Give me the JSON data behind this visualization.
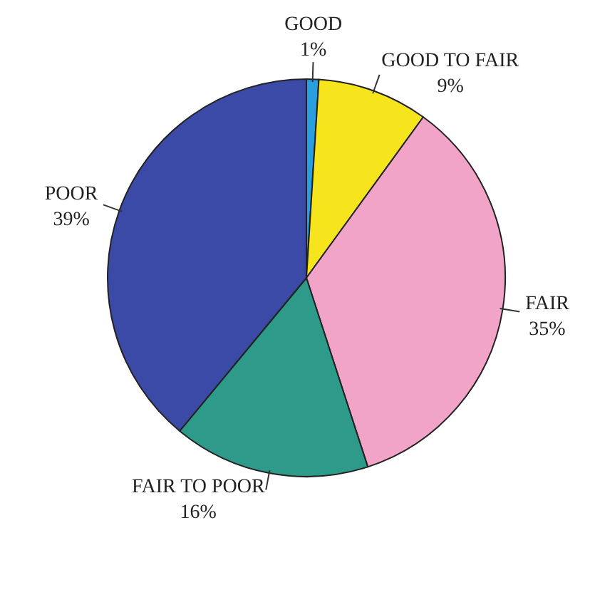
{
  "chart_data": {
    "type": "pie",
    "categories": [
      "GOOD",
      "GOOD TO FAIR",
      "FAIR",
      "FAIR TO POOR",
      "POOR"
    ],
    "values": [
      1,
      9,
      35,
      16,
      39
    ],
    "colors": [
      "#2a9fe0",
      "#f6e41c",
      "#f2a4c8",
      "#2e9a8a",
      "#3b4aa6"
    ],
    "value_labels": [
      "1%",
      "9%",
      "35%",
      "16%",
      "39%"
    ],
    "legend": false
  }
}
